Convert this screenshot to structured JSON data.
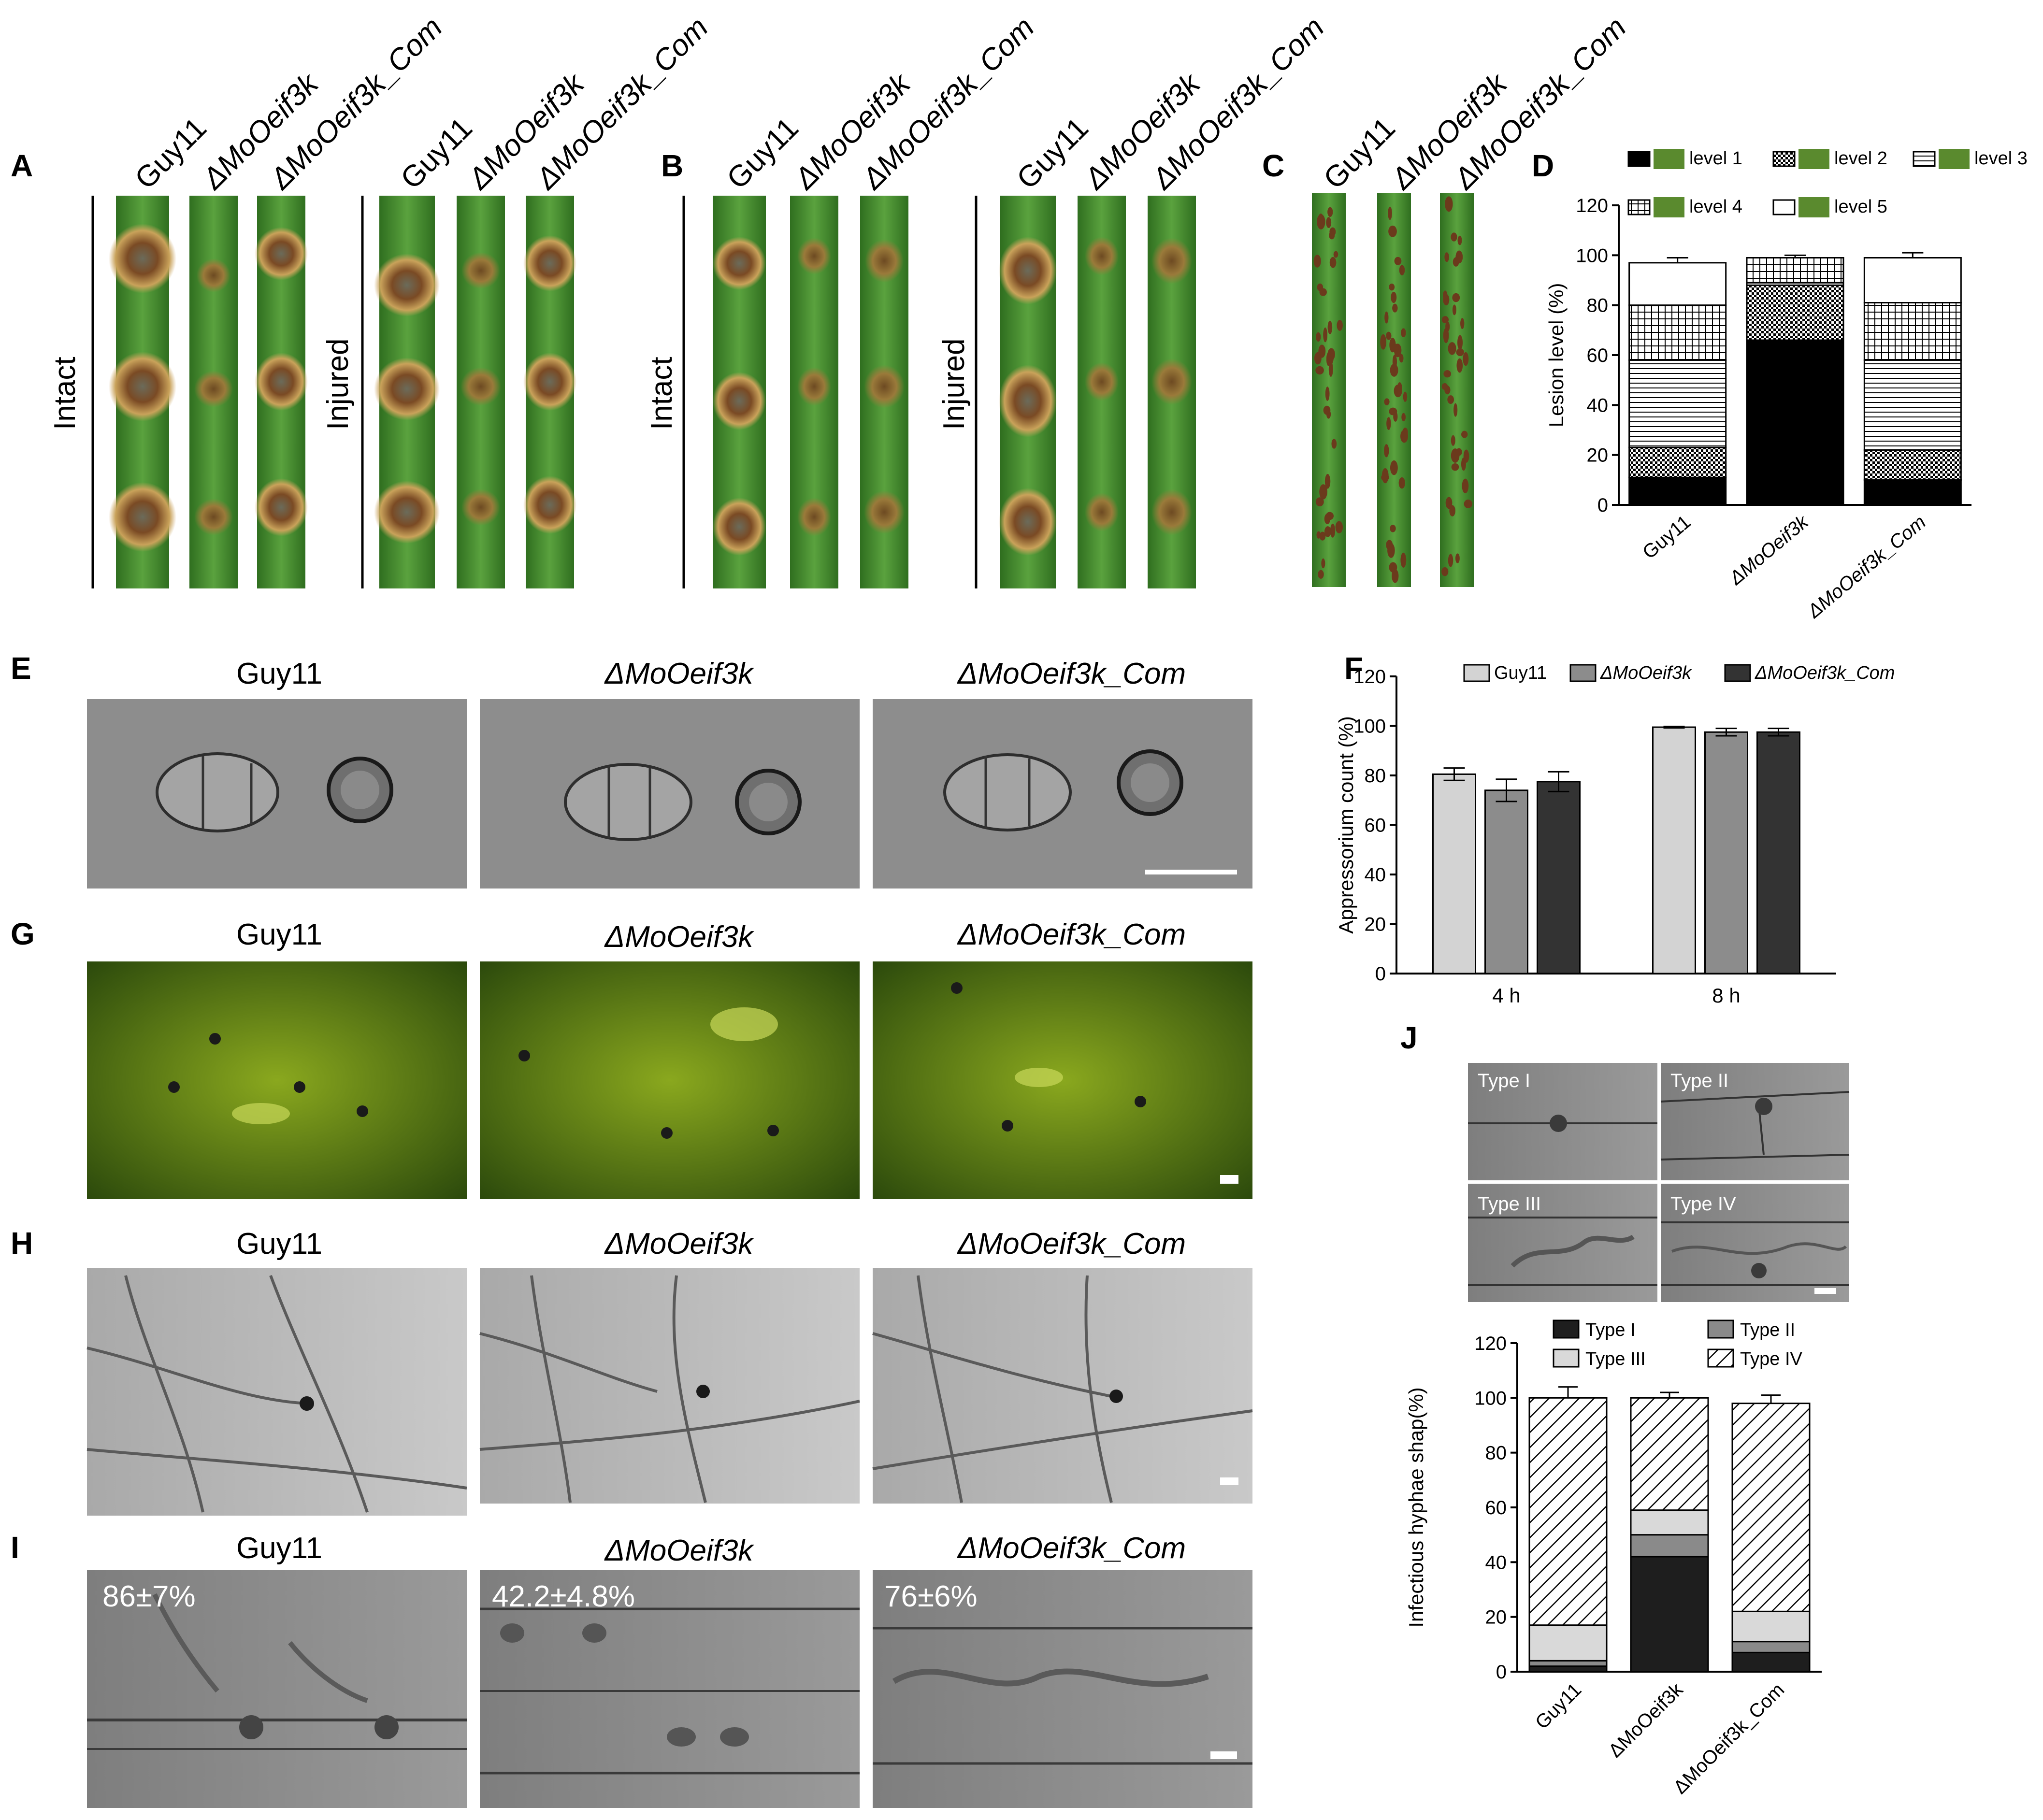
{
  "panel_labels": [
    "A",
    "B",
    "C",
    "D",
    "E",
    "F",
    "G",
    "H",
    "I",
    "J"
  ],
  "strains": [
    "Guy11",
    "ΔMoOeif3k",
    "ΔMoOeif3k_Com"
  ],
  "leaf_conditions": [
    "Intact",
    "Injured"
  ],
  "panel_I_percentages": [
    "86±7%",
    "42.2±4.8%",
    "76±6%"
  ],
  "panel_J_types": [
    "Type I",
    "Type II",
    "Type III",
    "Type IV"
  ],
  "colors": {
    "leaf_green": "#3f8a2c",
    "lesion_brown": "#8a5a2a",
    "micro_gray": "#8c8c8c",
    "fluor_green": "#3a5a12",
    "bar_light": "#d3d3d3",
    "bar_mid": "#8c8c8c",
    "bar_dark": "#333333"
  },
  "chart_data": [
    {
      "panel": "D",
      "type": "bar",
      "stacked": true,
      "ylabel": "Lesion level (%)",
      "ylim": [
        0,
        120
      ],
      "yticks": [
        0,
        20,
        40,
        60,
        80,
        100,
        120
      ],
      "categories": [
        "Guy11",
        "ΔMoOeif3k",
        "ΔMoOeif3k_Com"
      ],
      "legend_position": "top",
      "series": [
        {
          "name": "level 1",
          "values": [
            11,
            66,
            10
          ],
          "errors": [
            0,
            1,
            0
          ]
        },
        {
          "name": "level 2",
          "values": [
            12,
            22,
            12
          ],
          "errors": [
            2,
            3,
            2
          ]
        },
        {
          "name": "level 3",
          "values": [
            35,
            1,
            36
          ],
          "errors": [
            2,
            0,
            2
          ]
        },
        {
          "name": "level 4",
          "values": [
            22,
            10,
            23
          ],
          "errors": [
            2,
            1,
            2
          ]
        },
        {
          "name": "level 5",
          "values": [
            17,
            0,
            18
          ],
          "errors": [
            2,
            1,
            2
          ]
        }
      ]
    },
    {
      "panel": "F",
      "type": "bar",
      "stacked": false,
      "ylabel": "Appressorium count  (%)",
      "ylim": [
        0,
        120
      ],
      "yticks": [
        0,
        20,
        40,
        60,
        80,
        100,
        120
      ],
      "categories": [
        "4 h",
        "8 h"
      ],
      "legend_position": "top",
      "series": [
        {
          "name": "Guy11",
          "values": [
            80.5,
            99.5
          ],
          "errors": [
            2.5,
            0.3
          ]
        },
        {
          "name": "ΔMoOeif3k",
          "values": [
            74,
            97.5
          ],
          "errors": [
            4.5,
            1.5
          ]
        },
        {
          "name": "ΔMoOeif3k_Com",
          "values": [
            77.5,
            97.5
          ],
          "errors": [
            4,
            1.5
          ]
        }
      ]
    },
    {
      "panel": "J",
      "type": "bar",
      "stacked": true,
      "ylabel": "Infectious hyphae  shap(%)",
      "ylim": [
        0,
        120
      ],
      "yticks": [
        0,
        20,
        40,
        60,
        80,
        100,
        120
      ],
      "categories": [
        "Guy11",
        "ΔMoOeif3k",
        "ΔMoOeif3k_Com"
      ],
      "legend_position": "top",
      "series": [
        {
          "name": "Type I",
          "values": [
            2,
            42,
            7
          ],
          "errors": [
            1,
            3,
            2
          ]
        },
        {
          "name": "Type II",
          "values": [
            2,
            8,
            4
          ],
          "errors": [
            1,
            1,
            1
          ]
        },
        {
          "name": "Type III",
          "values": [
            13,
            9,
            11
          ],
          "errors": [
            1,
            1,
            1
          ]
        },
        {
          "name": "Type IV",
          "values": [
            83,
            41,
            76
          ],
          "errors": [
            4,
            2,
            3
          ]
        }
      ]
    }
  ]
}
